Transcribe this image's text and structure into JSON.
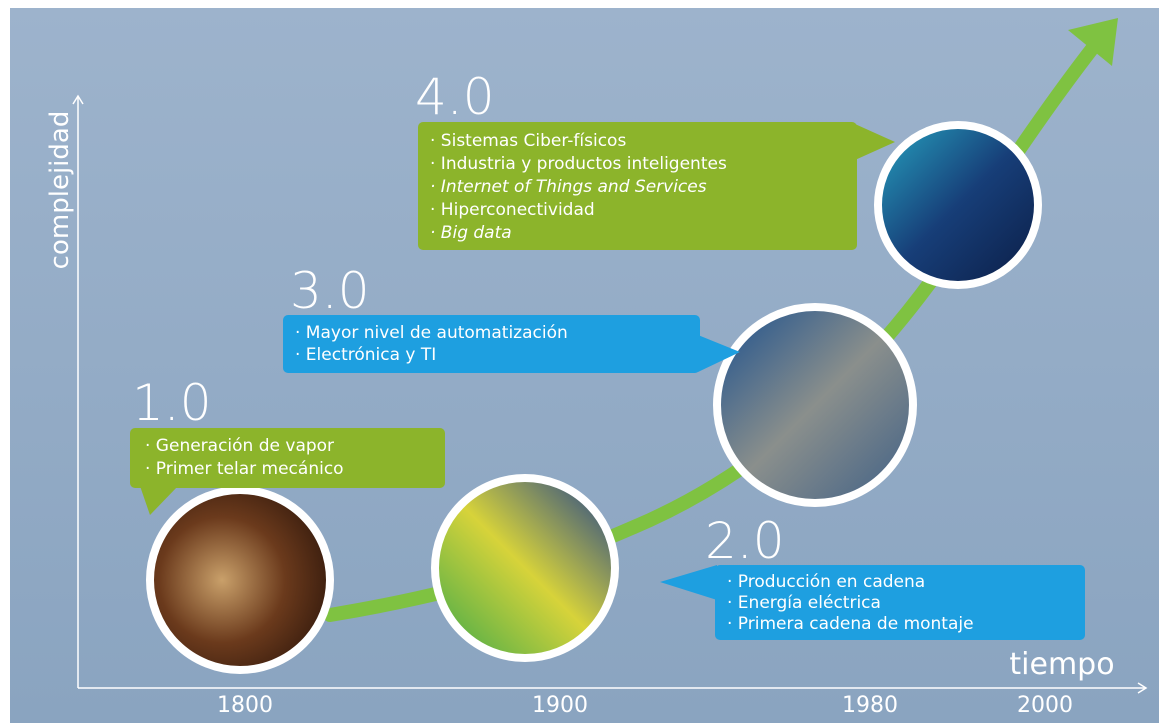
{
  "axis": {
    "y_label": "complejidad",
    "x_label": "tiempo"
  },
  "years": [
    "1800",
    "1900",
    "1980",
    "2000"
  ],
  "stages": [
    {
      "label": "1.0",
      "items": [
        "· Generación de vapor",
        "· Primer telar mecánico"
      ]
    },
    {
      "label": "2.0",
      "items": [
        "· Producción en cadena",
        "· Energía eléctrica",
        "· Primera cadena de montaje"
      ]
    },
    {
      "label": "3.0",
      "items": [
        "· Mayor nivel de automatización",
        "· Electrónica y TI"
      ]
    },
    {
      "label": "4.0",
      "items": [
        "· Sistemas Ciber-físicos",
        "· Industria y productos inteligentes",
        "· Internet of Things and Services",
        "· Hiperconectividad",
        "· Big data"
      ]
    }
  ]
}
